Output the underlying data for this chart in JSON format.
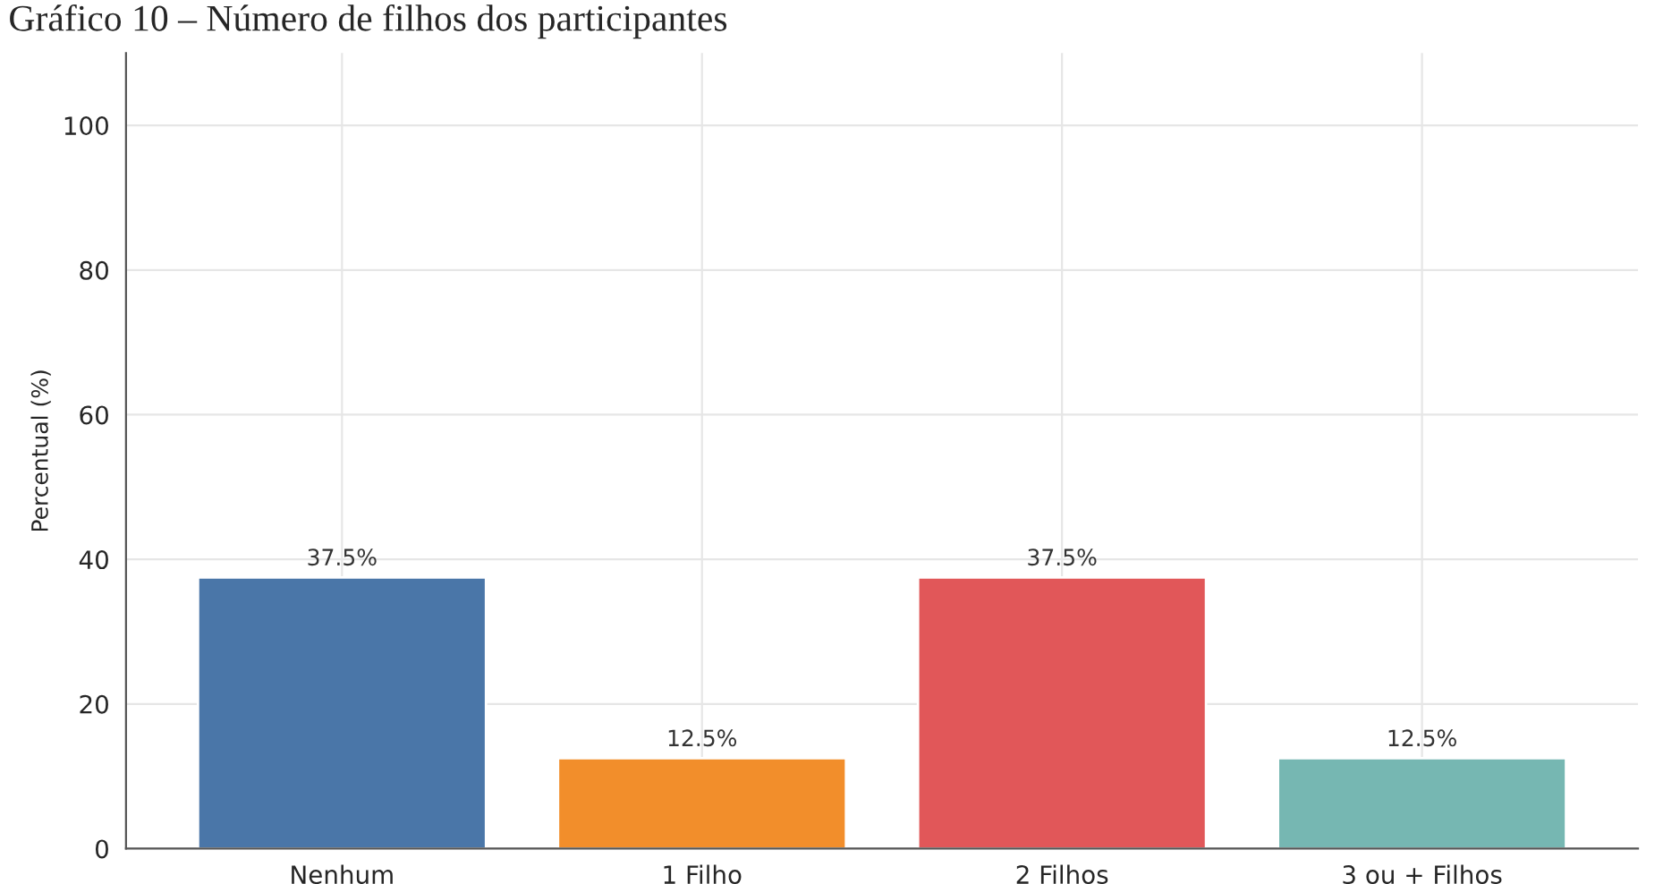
{
  "chart_data": {
    "type": "bar",
    "title": "Gráfico 10 – Número de filhos dos participantes",
    "ylabel": "Percentual (%)",
    "categories": [
      "Nenhum",
      "1 Filho",
      "2 Filhos",
      "3 ou + Filhos"
    ],
    "values": [
      37.5,
      12.5,
      37.5,
      12.5
    ],
    "colors": [
      "#4a76a8",
      "#f28e2b",
      "#e15759",
      "#76b7b2"
    ],
    "value_labels": [
      "37.5%",
      "12.5%",
      "37.5%",
      "12.5%"
    ],
    "ylim": [
      0,
      110
    ],
    "yticks": [
      0,
      20,
      40,
      60,
      80,
      100
    ],
    "grid": true
  }
}
